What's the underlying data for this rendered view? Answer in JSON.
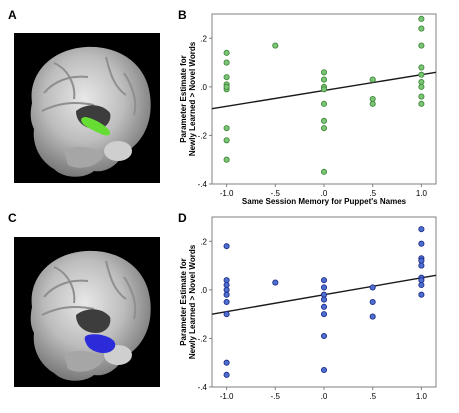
{
  "panels": {
    "a": "A",
    "b": "B",
    "c": "C",
    "d": "D"
  },
  "colors": {
    "green_fill": "#7cc576",
    "green_edge": "#3f8a3a",
    "blue_fill": "#4f6fd0",
    "blue_edge": "#1f2f8a",
    "line": "#1a1a1a",
    "axis": "#808080"
  },
  "chart_data": [
    {
      "panel": "B",
      "type": "scatter",
      "title": "",
      "xlabel": "Same Session Memory for Puppet's Names",
      "ylabel_line1": "Parameter Estimate for",
      "ylabel_line2": "Newly Learned > Novel Words",
      "xlim": [
        -1.15,
        1.15
      ],
      "ylim": [
        -0.4,
        0.3
      ],
      "xticks": [
        -1,
        -0.5,
        0,
        0.5,
        1
      ],
      "xtick_labels": [
        "-1.0",
        "-.5",
        ".0",
        ".5",
        "1.0"
      ],
      "yticks": [
        -0.4,
        -0.2,
        0,
        0.2
      ],
      "ytick_labels": [
        "-.4",
        "-.2",
        ".0",
        ".2"
      ],
      "fit_line": {
        "x": [
          -1.15,
          1.15
        ],
        "y": [
          -0.09,
          0.06
        ]
      },
      "points": [
        {
          "x": -1.0,
          "y": 0.14
        },
        {
          "x": -1.0,
          "y": 0.1
        },
        {
          "x": -1.0,
          "y": 0.04
        },
        {
          "x": -1.0,
          "y": 0.01
        },
        {
          "x": -1.0,
          "y": -0.01
        },
        {
          "x": -1.0,
          "y": 0.0
        },
        {
          "x": -1.0,
          "y": -0.17
        },
        {
          "x": -1.0,
          "y": -0.22
        },
        {
          "x": -1.0,
          "y": -0.3
        },
        {
          "x": -0.5,
          "y": 0.17
        },
        {
          "x": 0.0,
          "y": 0.06
        },
        {
          "x": 0.0,
          "y": 0.03
        },
        {
          "x": 0.0,
          "y": 0.0
        },
        {
          "x": 0.0,
          "y": -0.01
        },
        {
          "x": 0.0,
          "y": -0.07
        },
        {
          "x": 0.0,
          "y": -0.14
        },
        {
          "x": 0.0,
          "y": -0.17
        },
        {
          "x": 0.0,
          "y": -0.35
        },
        {
          "x": 0.5,
          "y": 0.03
        },
        {
          "x": 0.5,
          "y": -0.05
        },
        {
          "x": 0.5,
          "y": -0.07
        },
        {
          "x": 1.0,
          "y": 0.28
        },
        {
          "x": 1.0,
          "y": 0.24
        },
        {
          "x": 1.0,
          "y": 0.17
        },
        {
          "x": 1.0,
          "y": 0.08
        },
        {
          "x": 1.0,
          "y": 0.05
        },
        {
          "x": 1.0,
          "y": 0.02
        },
        {
          "x": 1.0,
          "y": 0.0
        },
        {
          "x": 1.0,
          "y": -0.04
        },
        {
          "x": 1.0,
          "y": -0.07
        }
      ]
    },
    {
      "panel": "D",
      "type": "scatter",
      "title": "",
      "xlabel": "",
      "ylabel_line1": "Parameter Estimate for",
      "ylabel_line2": "Newly Learned > Novel Words",
      "xlim": [
        -1.15,
        1.15
      ],
      "ylim": [
        -0.4,
        0.3
      ],
      "xticks": [
        -1,
        -0.5,
        0,
        0.5,
        1
      ],
      "xtick_labels": [
        "-1.0",
        "-.5",
        ".0",
        ".5",
        "1.0"
      ],
      "yticks": [
        -0.4,
        -0.2,
        0,
        0.2
      ],
      "ytick_labels": [
        "-.4",
        "-.2",
        ".0",
        ".2"
      ],
      "fit_line": {
        "x": [
          -1.15,
          1.15
        ],
        "y": [
          -0.1,
          0.06
        ]
      },
      "points": [
        {
          "x": -1.0,
          "y": 0.18
        },
        {
          "x": -1.0,
          "y": 0.04
        },
        {
          "x": -1.0,
          "y": 0.02
        },
        {
          "x": -1.0,
          "y": 0.0
        },
        {
          "x": -1.0,
          "y": -0.02
        },
        {
          "x": -1.0,
          "y": -0.05
        },
        {
          "x": -1.0,
          "y": -0.1
        },
        {
          "x": -1.0,
          "y": -0.3
        },
        {
          "x": -1.0,
          "y": -0.35
        },
        {
          "x": -0.5,
          "y": 0.03
        },
        {
          "x": 0.0,
          "y": 0.04
        },
        {
          "x": 0.0,
          "y": 0.01
        },
        {
          "x": 0.0,
          "y": -0.02
        },
        {
          "x": 0.0,
          "y": -0.04
        },
        {
          "x": 0.0,
          "y": -0.07
        },
        {
          "x": 0.0,
          "y": -0.1
        },
        {
          "x": 0.0,
          "y": -0.19
        },
        {
          "x": 0.0,
          "y": -0.33
        },
        {
          "x": 0.5,
          "y": 0.01
        },
        {
          "x": 0.5,
          "y": -0.05
        },
        {
          "x": 0.5,
          "y": -0.11
        },
        {
          "x": 1.0,
          "y": 0.25
        },
        {
          "x": 1.0,
          "y": 0.19
        },
        {
          "x": 1.0,
          "y": 0.13
        },
        {
          "x": 1.0,
          "y": 0.12
        },
        {
          "x": 1.0,
          "y": 0.1
        },
        {
          "x": 1.0,
          "y": 0.05
        },
        {
          "x": 1.0,
          "y": 0.04
        },
        {
          "x": 1.0,
          "y": 0.02
        },
        {
          "x": 1.0,
          "y": -0.02
        }
      ]
    }
  ]
}
